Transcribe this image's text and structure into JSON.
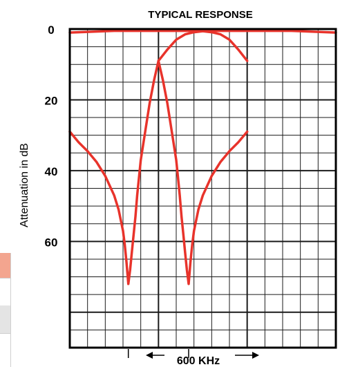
{
  "chart_data": {
    "type": "line",
    "title": "TYPICAL RESPONSE",
    "ylabel": "Attenuation in dB",
    "y_tick_labels": [
      "0",
      "20",
      "40",
      "60"
    ],
    "ylim": [
      0,
      90
    ],
    "y_axis_direction": "down",
    "grid": true,
    "bandwidth_annotation": "600 KHz",
    "colors": {
      "curve": "#e8332b",
      "frame": "#000000",
      "grid": "#1a1a1a"
    },
    "series": [
      {
        "x": [
          -1.0,
          -0.9,
          -0.8,
          -0.7,
          -0.6,
          -0.5,
          -0.4,
          -0.3,
          -0.2,
          -0.1,
          0.0,
          0.1,
          0.2,
          0.3,
          0.4,
          0.5,
          0.6,
          0.7,
          0.8,
          0.9,
          1.0
        ],
        "values": [
          1.0,
          0.9,
          0.8,
          0.7,
          0.6,
          0.5,
          0.5,
          0.5,
          0.5,
          0.5,
          0.5,
          0.5,
          0.5,
          0.5,
          0.5,
          0.6,
          0.9,
          1.5,
          3,
          5.8,
          9
        ]
      },
      {
        "x": [
          -1.0,
          -0.9,
          -0.8,
          -0.7,
          -0.6,
          -0.5,
          -0.45,
          -0.4,
          -0.38,
          -0.36,
          -0.34,
          -0.32,
          -0.3,
          -0.28,
          -0.26,
          -0.24,
          -0.22,
          -0.2,
          -0.15,
          -0.1,
          -0.05,
          0.0
        ],
        "values": [
          29,
          32,
          34.5,
          37.5,
          41.5,
          47,
          51,
          57,
          61,
          66,
          72,
          68,
          63,
          58,
          53,
          47,
          42,
          37,
          29,
          21,
          14.5,
          9
        ]
      },
      {
        "x": [
          0.0,
          0.1,
          0.2,
          0.3,
          0.4,
          0.5,
          0.6,
          0.7,
          0.8,
          0.9,
          1.0,
          1.1,
          1.2,
          1.3,
          1.4,
          1.5,
          1.6,
          1.7,
          1.8,
          1.9,
          2.0
        ],
        "values": [
          9,
          5.8,
          3,
          1.5,
          0.9,
          0.6,
          0.5,
          0.5,
          0.5,
          0.5,
          0.5,
          0.5,
          0.5,
          0.5,
          0.5,
          0.5,
          0.6,
          0.7,
          0.8,
          0.9,
          1.0
        ]
      },
      {
        "x": [
          0.0,
          0.05,
          0.1,
          0.15,
          0.2,
          0.22,
          0.24,
          0.26,
          0.28,
          0.3,
          0.32,
          0.34,
          0.36,
          0.38,
          0.4,
          0.45,
          0.5,
          0.6,
          0.7,
          0.8,
          0.9,
          1.0
        ],
        "values": [
          9,
          14.5,
          21,
          29,
          37,
          42,
          47,
          53,
          58,
          63,
          68,
          72,
          66,
          61,
          57,
          51,
          47,
          41.5,
          37.5,
          34.5,
          32,
          29
        ]
      }
    ]
  }
}
